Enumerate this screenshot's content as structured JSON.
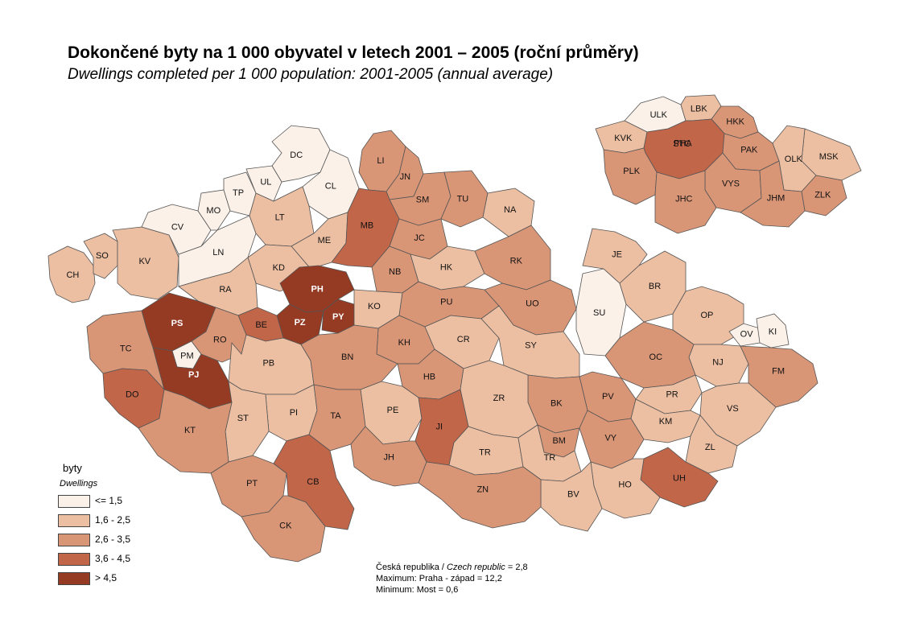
{
  "title": "Dokončené byty na 1 000 obyvatel  v letech 2001 – 2005 (roční průměry)",
  "subtitle": "Dwellings completed per 1 000 population: 2001-2005 (annual average)",
  "legend": {
    "title": "byty",
    "subtitle": "Dwellings",
    "classes": [
      {
        "label": "<= 1,5",
        "color": "#fbf1e8"
      },
      {
        "label": "1,6 - 2,5",
        "color": "#ecbfa3"
      },
      {
        "label": "2,6 - 3,5",
        "color": "#d99677"
      },
      {
        "label": "3,6 - 4,5",
        "color": "#c2664a"
      },
      {
        "label": "> 4,5",
        "color": "#953b24"
      }
    ]
  },
  "notes": {
    "line1_prefix": "Česká republika / ",
    "line1_italic": "Czech republic",
    "line1_suffix": " =  2,8",
    "line2": "Maximum:  Praha - západ = 12,2",
    "line3": "Minimum: Most  = 0,6"
  },
  "regions": {
    "CH": {
      "cls": 1
    },
    "SO": {
      "cls": 1
    },
    "KV": {
      "cls": 1
    },
    "CV": {
      "cls": 0
    },
    "MO": {
      "cls": 0
    },
    "TP": {
      "cls": 0
    },
    "UL": {
      "cls": 0
    },
    "DC": {
      "cls": 0
    },
    "CL": {
      "cls": 0
    },
    "LN": {
      "cls": 0
    },
    "LT": {
      "cls": 1
    },
    "ME": {
      "cls": 1
    },
    "KD": {
      "cls": 1
    },
    "RA": {
      "cls": 1
    },
    "LI": {
      "cls": 2
    },
    "JN": {
      "cls": 2
    },
    "SM": {
      "cls": 2
    },
    "TU": {
      "cls": 2
    },
    "MB": {
      "cls": 3
    },
    "JC": {
      "cls": 2
    },
    "NA": {
      "cls": 1
    },
    "NB": {
      "cls": 2
    },
    "HK": {
      "cls": 1
    },
    "RK": {
      "cls": 2
    },
    "PH": {
      "cls": 4
    },
    "PZ": {
      "cls": 4
    },
    "PY": {
      "cls": 4
    },
    "BE": {
      "cls": 3
    },
    "KO": {
      "cls": 1
    },
    "PU": {
      "cls": 2
    },
    "UO": {
      "cls": 2
    },
    "PS": {
      "cls": 4
    },
    "PM": {
      "cls": 0
    },
    "PJ": {
      "cls": 4
    },
    "TC": {
      "cls": 2
    },
    "RO": {
      "cls": 2
    },
    "DO": {
      "cls": 3
    },
    "KH": {
      "cls": 2
    },
    "CR": {
      "cls": 1
    },
    "SY": {
      "cls": 1
    },
    "SU": {
      "cls": 0
    },
    "JE": {
      "cls": 1
    },
    "BR": {
      "cls": 1
    },
    "OP": {
      "cls": 1
    },
    "OV": {
      "cls": 0
    },
    "KI": {
      "cls": 0
    },
    "NJ": {
      "cls": 1
    },
    "FM": {
      "cls": 2
    },
    "OC": {
      "cls": 2
    },
    "PB": {
      "cls": 1
    },
    "BN": {
      "cls": 2
    },
    "HB": {
      "cls": 2
    },
    "PV": {
      "cls": 2
    },
    "PR": {
      "cls": 1
    },
    "VS": {
      "cls": 1
    },
    "BK": {
      "cls": 2
    },
    "ZR": {
      "cls": 1
    },
    "PE": {
      "cls": 1
    },
    "PI": {
      "cls": 1
    },
    "ST": {
      "cls": 1
    },
    "TA": {
      "cls": 2
    },
    "KT": {
      "cls": 2
    },
    "JI": {
      "cls": 3
    },
    "KM": {
      "cls": 1
    },
    "ZL": {
      "cls": 1
    },
    "VY": {
      "cls": 2
    },
    "BM": {
      "cls": 2
    },
    "TR1": {
      "cls": 1,
      "text": "TR"
    },
    "TR2": {
      "cls": 1,
      "text": "TR"
    },
    "JH": {
      "cls": 2
    },
    "UH": {
      "cls": 3
    },
    "HO": {
      "cls": 1
    },
    "BV": {
      "cls": 1
    },
    "ZN": {
      "cls": 2
    },
    "PT": {
      "cls": 2
    },
    "CB": {
      "cls": 3
    },
    "CK": {
      "cls": 2
    }
  },
  "inset": {
    "ULK": {
      "cls": 0
    },
    "LBK": {
      "cls": 1
    },
    "HKK": {
      "cls": 2
    },
    "KVK": {
      "cls": 1
    },
    "PHA": {
      "cls": 3
    },
    "STC": {
      "cls": 3
    },
    "PAK": {
      "cls": 2
    },
    "MSK": {
      "cls": 1
    },
    "OLK": {
      "cls": 1
    },
    "PLK": {
      "cls": 2
    },
    "VYS": {
      "cls": 2
    },
    "ZLK": {
      "cls": 2
    },
    "JHC": {
      "cls": 2
    },
    "JHM": {
      "cls": 2
    }
  }
}
